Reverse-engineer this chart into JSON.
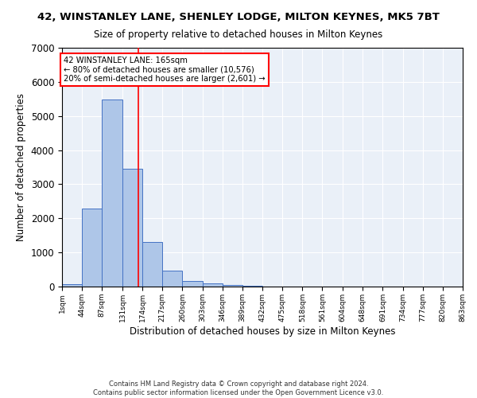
{
  "title": "42, WINSTANLEY LANE, SHENLEY LODGE, MILTON KEYNES, MK5 7BT",
  "subtitle": "Size of property relative to detached houses in Milton Keynes",
  "xlabel": "Distribution of detached houses by size in Milton Keynes",
  "ylabel": "Number of detached properties",
  "footer_line1": "Contains HM Land Registry data © Crown copyright and database right 2024.",
  "footer_line2": "Contains public sector information licensed under the Open Government Licence v3.0.",
  "annotation_line1": "42 WINSTANLEY LANE: 165sqm",
  "annotation_line2": "← 80% of detached houses are smaller (10,576)",
  "annotation_line3": "20% of semi-detached houses are larger (2,601) →",
  "bar_color": "#aec6e8",
  "bar_edge_color": "#4472c4",
  "background_color": "#eaf0f8",
  "grid_color": "#ffffff",
  "redline_x": 165,
  "ylim": [
    0,
    7000
  ],
  "yticks": [
    0,
    1000,
    2000,
    3000,
    4000,
    5000,
    6000,
    7000
  ],
  "bin_edges": [
    1,
    44,
    87,
    131,
    174,
    217,
    260,
    303,
    346,
    389,
    432,
    475,
    518,
    561,
    604,
    648,
    691,
    734,
    777,
    820,
    863
  ],
  "bin_labels": [
    "1sqm",
    "44sqm",
    "87sqm",
    "131sqm",
    "174sqm",
    "217sqm",
    "260sqm",
    "303sqm",
    "346sqm",
    "389sqm",
    "432sqm",
    "475sqm",
    "518sqm",
    "561sqm",
    "604sqm",
    "648sqm",
    "691sqm",
    "734sqm",
    "777sqm",
    "820sqm",
    "863sqm"
  ],
  "bar_heights": [
    80,
    2280,
    5480,
    3450,
    1310,
    470,
    160,
    90,
    55,
    30,
    10,
    0,
    0,
    0,
    0,
    0,
    0,
    0,
    0,
    0
  ]
}
